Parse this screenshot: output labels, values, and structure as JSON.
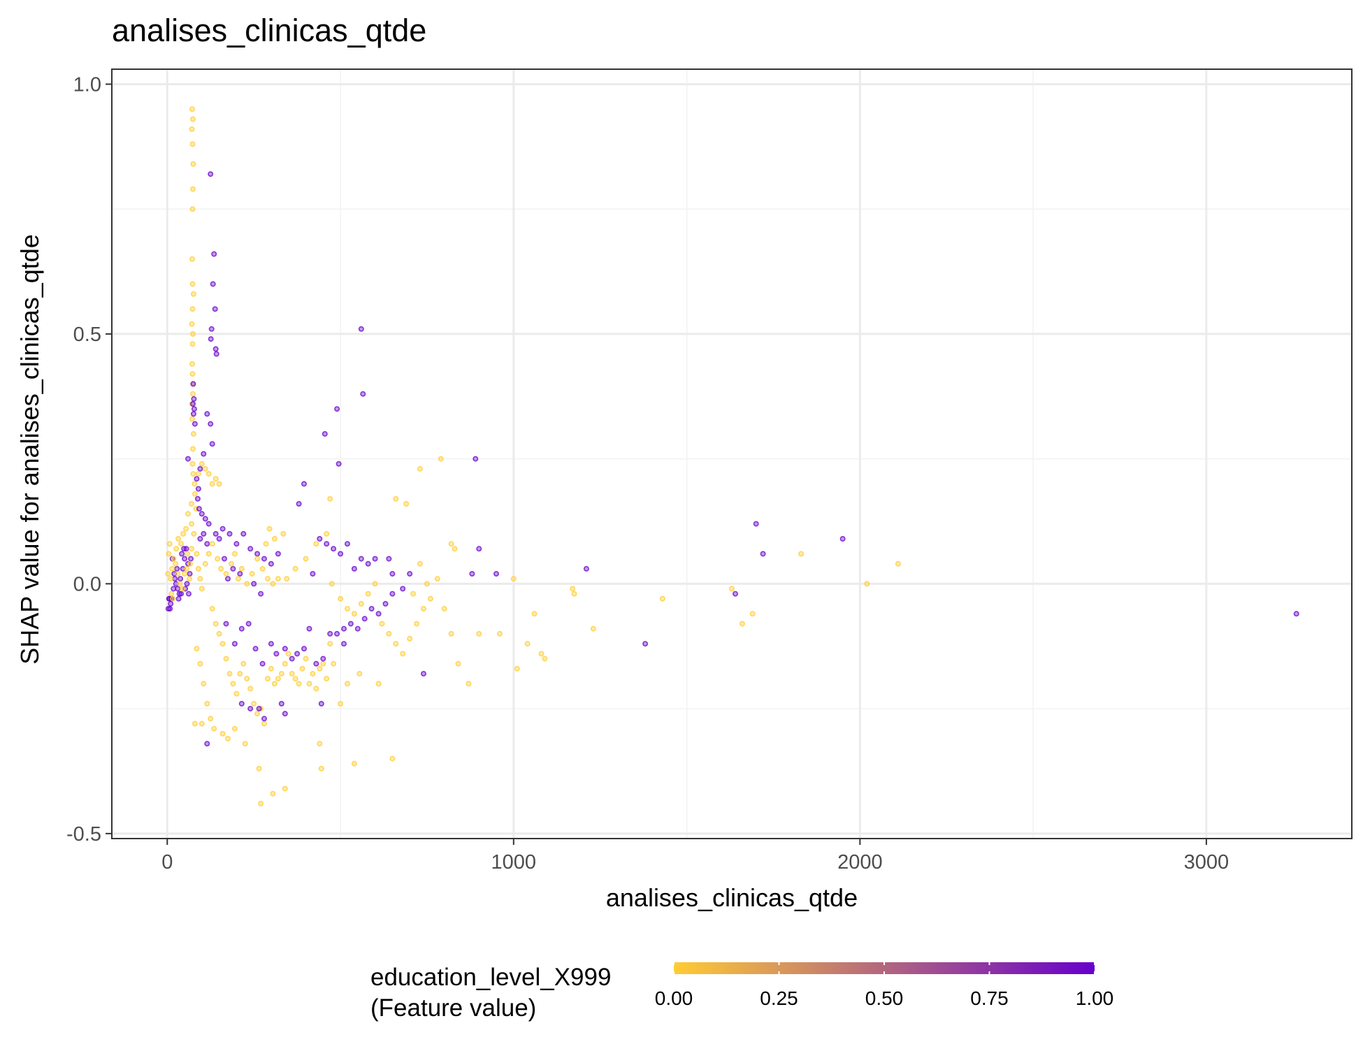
{
  "chart_data": {
    "type": "scatter",
    "title": "analises_clinicas_qtde",
    "xlabel": "analises_clinicas_qtde",
    "ylabel": "SHAP value for analises_clinicas_qtde",
    "xlim": [
      -160,
      3420
    ],
    "ylim": [
      -0.51,
      1.03
    ],
    "x_ticks": [
      0,
      1000,
      2000,
      3000
    ],
    "x_tick_labels": [
      "0",
      "1000",
      "2000",
      "3000"
    ],
    "y_ticks": [
      -0.5,
      0.0,
      0.5,
      1.0
    ],
    "y_tick_labels": [
      "-0.5",
      "0.0",
      "0.5",
      "1.0"
    ],
    "grid": true,
    "legend": {
      "title_line1": "education_level_X999",
      "title_line2": "(Feature value)",
      "position": "bottom",
      "color_low": "#FFCC33",
      "color_high": "#6600CC",
      "ticks": [
        0,
        0.25,
        0.5,
        0.75,
        1
      ],
      "tick_labels": [
        "0.00",
        "0.25",
        "0.50",
        "0.75",
        "1.00"
      ]
    },
    "colors": {
      "low": "#FFCC33",
      "high": "#6600CC",
      "panel_border": "#333333",
      "grid_major": "#EBEBEB",
      "grid_minor": "#F2F2F2"
    },
    "points": [
      [
        72,
        0.95,
        0
      ],
      [
        74,
        0.93,
        0
      ],
      [
        71,
        0.91,
        0
      ],
      [
        73,
        0.88,
        0
      ],
      [
        75,
        0.84,
        0
      ],
      [
        74,
        0.79,
        0
      ],
      [
        73,
        0.75,
        0
      ],
      [
        72,
        0.65,
        0
      ],
      [
        73,
        0.6,
        0
      ],
      [
        76,
        0.58,
        0
      ],
      [
        73,
        0.55,
        0
      ],
      [
        71,
        0.52,
        0
      ],
      [
        74,
        0.5,
        0
      ],
      [
        73,
        0.48,
        0
      ],
      [
        72,
        0.44,
        0
      ],
      [
        73,
        0.42,
        0
      ],
      [
        75,
        0.4,
        0
      ],
      [
        74,
        0.38,
        0
      ],
      [
        71,
        0.36,
        0
      ],
      [
        72,
        0.33,
        0
      ],
      [
        76,
        0.3,
        0
      ],
      [
        74,
        0.27,
        0
      ],
      [
        73,
        0.24,
        0
      ],
      [
        75,
        0.22,
        0
      ],
      [
        79,
        0.2,
        0
      ],
      [
        83,
        0.15,
        0
      ],
      [
        70,
        0.12,
        0
      ],
      [
        77,
        0.1,
        0
      ],
      [
        125,
        0.82,
        1
      ],
      [
        135,
        0.66,
        1
      ],
      [
        132,
        0.6,
        1
      ],
      [
        138,
        0.55,
        1
      ],
      [
        128,
        0.51,
        1
      ],
      [
        126,
        0.49,
        1
      ],
      [
        140,
        0.47,
        1
      ],
      [
        142,
        0.46,
        1
      ],
      [
        75,
        0.4,
        1
      ],
      [
        77,
        0.37,
        1
      ],
      [
        74,
        0.36,
        1
      ],
      [
        78,
        0.35,
        1
      ],
      [
        76,
        0.34,
        1
      ],
      [
        80,
        0.32,
        1
      ],
      [
        115,
        0.34,
        1
      ],
      [
        125,
        0.32,
        1
      ],
      [
        130,
        0.28,
        1
      ],
      [
        105,
        0.26,
        1
      ],
      [
        60,
        0.25,
        1
      ],
      [
        95,
        0.23,
        1
      ],
      [
        85,
        0.21,
        1
      ],
      [
        90,
        0.19,
        1
      ],
      [
        88,
        0.17,
        1
      ],
      [
        92,
        0.15,
        1
      ],
      [
        100,
        0.14,
        1
      ],
      [
        110,
        0.13,
        1
      ],
      [
        120,
        0.12,
        1
      ],
      [
        105,
        0.1,
        1
      ],
      [
        95,
        0.09,
        1
      ],
      [
        115,
        0.08,
        1
      ],
      [
        140,
        0.1,
        1
      ],
      [
        150,
        0.09,
        1
      ],
      [
        160,
        0.11,
        1
      ],
      [
        180,
        0.1,
        1
      ],
      [
        200,
        0.08,
        1
      ],
      [
        220,
        0.1,
        1
      ],
      [
        240,
        0.07,
        1
      ],
      [
        260,
        0.06,
        1
      ],
      [
        280,
        0.05,
        1
      ],
      [
        300,
        0.04,
        1
      ],
      [
        320,
        0.06,
        1
      ],
      [
        165,
        0.05,
        1
      ],
      [
        190,
        0.03,
        1
      ],
      [
        175,
        0.01,
        1
      ],
      [
        210,
        0.02,
        1
      ],
      [
        250,
        0.0,
        1
      ],
      [
        270,
        -0.02,
        1
      ],
      [
        15,
        0.05,
        1
      ],
      [
        20,
        0.02,
        1
      ],
      [
        25,
        0.0,
        1
      ],
      [
        30,
        -0.01,
        1
      ],
      [
        35,
        -0.02,
        1
      ],
      [
        40,
        -0.02,
        1
      ],
      [
        45,
        0.03,
        1
      ],
      [
        50,
        0.05,
        1
      ],
      [
        55,
        0.07,
        1
      ],
      [
        60,
        0.04,
        1
      ],
      [
        65,
        0.02,
        1
      ],
      [
        5,
        -0.03,
        1
      ],
      [
        8,
        -0.05,
        1
      ],
      [
        10,
        -0.04,
        1
      ],
      [
        12,
        -0.03,
        1
      ],
      [
        3,
        -0.05,
        1
      ],
      [
        6,
        -0.03,
        1
      ],
      [
        18,
        -0.01,
        1
      ],
      [
        22,
        0.01,
        1
      ],
      [
        28,
        0.03,
        1
      ],
      [
        33,
        -0.03,
        1
      ],
      [
        38,
        0.01,
        1
      ],
      [
        42,
        0.06,
        1
      ],
      [
        48,
        0.07,
        1
      ],
      [
        52,
        -0.01,
        1
      ],
      [
        57,
        0.0,
        1
      ],
      [
        62,
        -0.02,
        1
      ],
      [
        68,
        0.05,
        1
      ],
      [
        10,
        0.01,
        0
      ],
      [
        14,
        0.03,
        0
      ],
      [
        18,
        0.05,
        0
      ],
      [
        24,
        0.04,
        0
      ],
      [
        30,
        0.02,
        0
      ],
      [
        36,
        0.0,
        0
      ],
      [
        44,
        -0.01,
        0
      ],
      [
        50,
        0.02,
        0
      ],
      [
        56,
        0.03,
        0
      ],
      [
        64,
        0.01,
        0
      ],
      [
        2,
        0.02,
        0
      ],
      [
        4,
        0.06,
        0
      ],
      [
        7,
        0.08,
        0
      ],
      [
        12,
        -0.02,
        0
      ],
      [
        16,
        -0.03,
        0
      ],
      [
        26,
        0.07,
        0
      ],
      [
        32,
        0.09,
        0
      ],
      [
        40,
        0.08,
        0
      ],
      [
        46,
        0.1,
        0
      ],
      [
        54,
        0.11,
        0
      ],
      [
        58,
        0.06,
        0
      ],
      [
        66,
        0.04,
        0
      ],
      [
        70,
        0.07,
        0
      ],
      [
        85,
        0.06,
        0
      ],
      [
        90,
        0.03,
        0
      ],
      [
        95,
        0.01,
        0
      ],
      [
        100,
        -0.01,
        0
      ],
      [
        110,
        0.04,
        0
      ],
      [
        120,
        0.06,
        0
      ],
      [
        130,
        0.08,
        0
      ],
      [
        145,
        0.05,
        0
      ],
      [
        155,
        0.03,
        0
      ],
      [
        170,
        0.02,
        0
      ],
      [
        185,
        0.04,
        0
      ],
      [
        195,
        0.06,
        0
      ],
      [
        205,
        0.01,
        0
      ],
      [
        215,
        0.03,
        0
      ],
      [
        230,
        0.0,
        0
      ],
      [
        245,
        0.02,
        0
      ],
      [
        260,
        0.05,
        0
      ],
      [
        275,
        0.03,
        0
      ],
      [
        290,
        0.01,
        0
      ],
      [
        305,
        0.0,
        0
      ],
      [
        320,
        0.01,
        0
      ],
      [
        335,
        0.1,
        0
      ],
      [
        310,
        0.09,
        0
      ],
      [
        295,
        0.11,
        0
      ],
      [
        285,
        0.08,
        0
      ],
      [
        150,
        0.2,
        0
      ],
      [
        140,
        0.21,
        0
      ],
      [
        130,
        0.2,
        0
      ],
      [
        120,
        0.22,
        0
      ],
      [
        110,
        0.23,
        0
      ],
      [
        100,
        0.24,
        0
      ],
      [
        90,
        0.22,
        0
      ],
      [
        80,
        0.18,
        0
      ],
      [
        70,
        0.16,
        0
      ],
      [
        60,
        0.14,
        0
      ],
      [
        130,
        -0.05,
        0
      ],
      [
        140,
        -0.08,
        0
      ],
      [
        150,
        -0.1,
        0
      ],
      [
        160,
        -0.12,
        0
      ],
      [
        170,
        -0.15,
        0
      ],
      [
        180,
        -0.18,
        0
      ],
      [
        190,
        -0.2,
        0
      ],
      [
        200,
        -0.22,
        0
      ],
      [
        210,
        -0.18,
        0
      ],
      [
        220,
        -0.16,
        0
      ],
      [
        230,
        -0.19,
        0
      ],
      [
        240,
        -0.21,
        0
      ],
      [
        250,
        -0.24,
        0
      ],
      [
        260,
        -0.26,
        0
      ],
      [
        270,
        -0.25,
        0
      ],
      [
        280,
        -0.28,
        0
      ],
      [
        290,
        -0.19,
        0
      ],
      [
        300,
        -0.17,
        0
      ],
      [
        310,
        -0.2,
        0
      ],
      [
        320,
        -0.19,
        0
      ],
      [
        330,
        -0.18,
        0
      ],
      [
        340,
        -0.16,
        0
      ],
      [
        350,
        -0.14,
        0
      ],
      [
        360,
        -0.18,
        0
      ],
      [
        370,
        -0.19,
        0
      ],
      [
        380,
        -0.2,
        0
      ],
      [
        390,
        -0.17,
        0
      ],
      [
        400,
        -0.15,
        0
      ],
      [
        410,
        -0.2,
        0
      ],
      [
        420,
        -0.18,
        0
      ],
      [
        430,
        -0.21,
        0
      ],
      [
        440,
        -0.17,
        0
      ],
      [
        450,
        -0.16,
        0
      ],
      [
        460,
        -0.19,
        0
      ],
      [
        85,
        -0.13,
        0
      ],
      [
        95,
        -0.16,
        0
      ],
      [
        105,
        -0.2,
        0
      ],
      [
        115,
        -0.24,
        0
      ],
      [
        125,
        -0.27,
        0
      ],
      [
        80,
        -0.28,
        0
      ],
      [
        100,
        -0.28,
        0
      ],
      [
        135,
        -0.29,
        0
      ],
      [
        160,
        -0.3,
        0
      ],
      [
        175,
        -0.31,
        0
      ],
      [
        195,
        -0.29,
        0
      ],
      [
        225,
        -0.32,
        0
      ],
      [
        265,
        -0.37,
        0
      ],
      [
        270,
        -0.44,
        0
      ],
      [
        305,
        -0.42,
        0
      ],
      [
        340,
        -0.41,
        0
      ],
      [
        440,
        -0.32,
        0
      ],
      [
        445,
        -0.37,
        0
      ],
      [
        540,
        -0.36,
        0
      ],
      [
        650,
        -0.35,
        0
      ],
      [
        240,
        -0.25,
        1
      ],
      [
        265,
        -0.25,
        1
      ],
      [
        215,
        -0.24,
        1
      ],
      [
        280,
        -0.27,
        1
      ],
      [
        330,
        -0.24,
        1
      ],
      [
        340,
        -0.26,
        1
      ],
      [
        445,
        -0.24,
        1
      ],
      [
        115,
        -0.32,
        1
      ],
      [
        170,
        -0.08,
        1
      ],
      [
        195,
        -0.12,
        1
      ],
      [
        215,
        -0.09,
        1
      ],
      [
        235,
        -0.08,
        1
      ],
      [
        255,
        -0.13,
        1
      ],
      [
        275,
        -0.16,
        1
      ],
      [
        300,
        -0.12,
        1
      ],
      [
        315,
        -0.14,
        1
      ],
      [
        340,
        -0.13,
        1
      ],
      [
        360,
        -0.15,
        1
      ],
      [
        375,
        -0.14,
        1
      ],
      [
        395,
        -0.13,
        1
      ],
      [
        410,
        -0.09,
        1
      ],
      [
        430,
        -0.16,
        1
      ],
      [
        450,
        -0.15,
        1
      ],
      [
        470,
        -0.1,
        1
      ],
      [
        490,
        -0.1,
        1
      ],
      [
        510,
        -0.09,
        1
      ],
      [
        530,
        -0.08,
        1
      ],
      [
        550,
        -0.09,
        1
      ],
      [
        570,
        -0.07,
        1
      ],
      [
        590,
        -0.05,
        1
      ],
      [
        610,
        -0.06,
        1
      ],
      [
        630,
        -0.04,
        1
      ],
      [
        650,
        -0.02,
        1
      ],
      [
        680,
        -0.01,
        1
      ],
      [
        700,
        0.02,
        1
      ],
      [
        420,
        0.02,
        1
      ],
      [
        440,
        0.09,
        1
      ],
      [
        460,
        0.08,
        1
      ],
      [
        480,
        0.07,
        1
      ],
      [
        500,
        0.06,
        1
      ],
      [
        520,
        0.08,
        1
      ],
      [
        540,
        0.03,
        1
      ],
      [
        560,
        0.05,
        1
      ],
      [
        580,
        0.04,
        1
      ],
      [
        600,
        0.05,
        1
      ],
      [
        640,
        0.05,
        1
      ],
      [
        380,
        0.16,
        1
      ],
      [
        395,
        0.2,
        1
      ],
      [
        455,
        0.3,
        1
      ],
      [
        490,
        0.35,
        1
      ],
      [
        495,
        0.24,
        1
      ],
      [
        560,
        0.51,
        1
      ],
      [
        565,
        0.38,
        1
      ],
      [
        890,
        0.25,
        1
      ],
      [
        900,
        0.07,
        1
      ],
      [
        880,
        0.02,
        1
      ],
      [
        950,
        0.02,
        1
      ],
      [
        1210,
        0.03,
        1
      ],
      [
        1640,
        -0.02,
        1
      ],
      [
        1700,
        0.12,
        1
      ],
      [
        1720,
        0.06,
        1
      ],
      [
        1950,
        0.09,
        1
      ],
      [
        1380,
        -0.12,
        1
      ],
      [
        3260,
        -0.06,
        1
      ],
      [
        740,
        -0.18,
        1
      ],
      [
        650,
        0.02,
        1
      ],
      [
        510,
        -0.12,
        1
      ],
      [
        475,
        0.0,
        0
      ],
      [
        500,
        -0.03,
        0
      ],
      [
        520,
        -0.05,
        0
      ],
      [
        540,
        -0.06,
        0
      ],
      [
        560,
        -0.04,
        0
      ],
      [
        580,
        -0.02,
        0
      ],
      [
        600,
        0.0,
        0
      ],
      [
        620,
        -0.08,
        0
      ],
      [
        640,
        -0.1,
        0
      ],
      [
        660,
        -0.12,
        0
      ],
      [
        680,
        -0.14,
        0
      ],
      [
        700,
        -0.11,
        0
      ],
      [
        720,
        -0.08,
        0
      ],
      [
        740,
        -0.05,
        0
      ],
      [
        760,
        -0.03,
        0
      ],
      [
        780,
        0.01,
        0
      ],
      [
        800,
        -0.05,
        0
      ],
      [
        820,
        -0.1,
        0
      ],
      [
        840,
        -0.16,
        0
      ],
      [
        870,
        -0.2,
        0
      ],
      [
        900,
        -0.1,
        0
      ],
      [
        960,
        -0.1,
        0
      ],
      [
        1000,
        0.01,
        0
      ],
      [
        1010,
        -0.17,
        0
      ],
      [
        1040,
        -0.12,
        0
      ],
      [
        1060,
        -0.06,
        0
      ],
      [
        1080,
        -0.14,
        0
      ],
      [
        1090,
        -0.15,
        0
      ],
      [
        1170,
        -0.01,
        0
      ],
      [
        1175,
        -0.02,
        0
      ],
      [
        1230,
        -0.09,
        0
      ],
      [
        1430,
        -0.03,
        0
      ],
      [
        1630,
        -0.01,
        0
      ],
      [
        1660,
        -0.08,
        0
      ],
      [
        1690,
        -0.06,
        0
      ],
      [
        1830,
        0.06,
        0
      ],
      [
        2020,
        0.0,
        0
      ],
      [
        2110,
        0.04,
        0
      ],
      [
        660,
        0.17,
        0
      ],
      [
        690,
        0.16,
        0
      ],
      [
        730,
        0.23,
        0
      ],
      [
        790,
        0.25,
        0
      ],
      [
        830,
        0.07,
        0
      ],
      [
        820,
        0.08,
        0
      ],
      [
        730,
        0.04,
        0
      ],
      [
        750,
        0.0,
        0
      ],
      [
        710,
        -0.02,
        0
      ],
      [
        470,
        0.17,
        0
      ],
      [
        460,
        0.1,
        0
      ],
      [
        430,
        0.08,
        0
      ],
      [
        400,
        0.05,
        0
      ],
      [
        370,
        0.03,
        0
      ],
      [
        345,
        0.01,
        0
      ],
      [
        555,
        -0.18,
        0
      ],
      [
        520,
        -0.2,
        0
      ],
      [
        610,
        -0.2,
        0
      ],
      [
        500,
        -0.24,
        0
      ],
      [
        470,
        -0.12,
        0
      ],
      [
        480,
        -0.16,
        0
      ]
    ]
  }
}
